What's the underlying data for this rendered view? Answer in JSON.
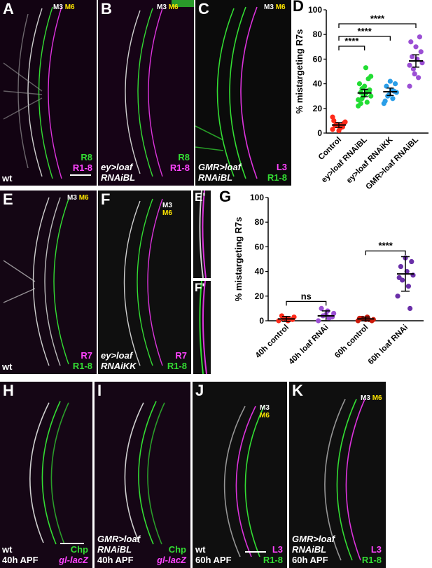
{
  "panels": {
    "A": {
      "label": "A",
      "genotype": "wt",
      "channels": [
        "R8",
        "R1-8"
      ],
      "markers": [
        "M3",
        "M6"
      ]
    },
    "B": {
      "label": "B",
      "genotype_line1": "ey>loaf",
      "genotype_line2": "RNAiBL",
      "channels": [
        "R8",
        "R1-8"
      ],
      "markers": [
        "M3",
        "M6"
      ]
    },
    "C": {
      "label": "C",
      "genotype_line1": "GMR>loaf",
      "genotype_line2": "RNAiBL",
      "channels": [
        "L3",
        "R1-8"
      ],
      "markers": [
        "M3",
        "M6"
      ]
    },
    "E": {
      "label": "E",
      "genotype": "wt",
      "channels": [
        "R7",
        "R1-8"
      ],
      "markers": [
        "M3",
        "M6"
      ]
    },
    "F": {
      "label": "F",
      "genotype_line1": "ey>loaf",
      "genotype_line2": "RNAiKK",
      "channels": [
        "R7",
        "R1-8"
      ],
      "markers": [
        "M3",
        "M6"
      ]
    },
    "E2": {
      "label": "E'"
    },
    "F2": {
      "label": "F'"
    },
    "H": {
      "label": "H",
      "genotype": "wt",
      "stage": "40h APF",
      "channels": [
        "Chp",
        "gl-lacZ"
      ]
    },
    "I": {
      "label": "I",
      "genotype_line1": "GMR>loaf",
      "genotype_line2": "RNAiBL",
      "stage": "40h APF",
      "channels": [
        "Chp",
        "gl-lacZ"
      ]
    },
    "J": {
      "label": "J",
      "genotype": "wt",
      "stage": "60h APF",
      "channels": [
        "L3",
        "R1-8"
      ],
      "markers": [
        "M3",
        "M6"
      ]
    },
    "K": {
      "label": "K",
      "genotype_line1": "GMR>loaf",
      "genotype_line2": "RNAiBL",
      "stage": "60h APF",
      "channels": [
        "L3",
        "R1-8"
      ],
      "markers": [
        "M3",
        "M6"
      ]
    }
  },
  "colors": {
    "green": "#33dd33",
    "magenta": "#ff44ff",
    "marker_yellow": "#ffe600"
  },
  "chart_data": [
    {
      "label": "D",
      "type": "scatter",
      "ylabel": "% mistargeting R7s",
      "ylim": [
        0,
        100
      ],
      "yticks": [
        0,
        20,
        40,
        60,
        80,
        100
      ],
      "categories": [
        "Control",
        "ey>loaf RNAiBL",
        "ey>loaf RNAiKK",
        "GMR>loaf RNAiBL"
      ],
      "colors": [
        "#ff2a1a",
        "#22dd33",
        "#2a9ee8",
        "#9b4fd4"
      ],
      "means": [
        6.5,
        32.5,
        33.5,
        58.5
      ],
      "errors": [
        2,
        3,
        3,
        5
      ],
      "points": [
        [
          3,
          5,
          7,
          9,
          4,
          6,
          8,
          2,
          10,
          5,
          7,
          13,
          6
        ],
        [
          22,
          25,
          28,
          30,
          32,
          33,
          35,
          38,
          40,
          44,
          30,
          27,
          34,
          36,
          46,
          53,
          24
        ],
        [
          24,
          28,
          30,
          33,
          35,
          38,
          40,
          42,
          26,
          34,
          31
        ],
        [
          38,
          45,
          52,
          57,
          60,
          62,
          66,
          70,
          74,
          78,
          48,
          55
        ]
      ],
      "significance": [
        {
          "from": 0,
          "to": 1,
          "label": "****"
        },
        {
          "from": 0,
          "to": 2,
          "label": "****"
        },
        {
          "from": 0,
          "to": 3,
          "label": "****"
        }
      ]
    },
    {
      "label": "G",
      "type": "scatter",
      "ylabel": "% mistargeting R7s",
      "ylim": [
        0,
        100
      ],
      "yticks": [
        0,
        20,
        40,
        60,
        80,
        100
      ],
      "categories": [
        "40h control",
        "40h loaf RNAi",
        "60h control",
        "60h loaf RNAi"
      ],
      "colors": [
        "#ff2a1a",
        "#9b4fd4",
        "#cc1a0a",
        "#6a2fa8"
      ],
      "means": [
        1.5,
        4,
        1.5,
        38
      ],
      "errors": [
        2,
        4,
        1.5,
        14
      ],
      "points": [
        [
          0,
          1,
          2,
          3,
          0,
          4,
          1,
          2
        ],
        [
          0,
          2,
          4,
          6,
          8,
          10,
          3,
          5
        ],
        [
          0,
          1,
          2,
          1,
          3,
          2,
          0,
          1,
          2
        ],
        [
          20,
          28,
          33,
          37,
          40,
          44,
          48,
          51,
          35,
          10
        ]
      ],
      "significance": [
        {
          "from": 0,
          "to": 1,
          "label": "ns"
        },
        {
          "from": 2,
          "to": 3,
          "label": "****"
        }
      ]
    }
  ]
}
